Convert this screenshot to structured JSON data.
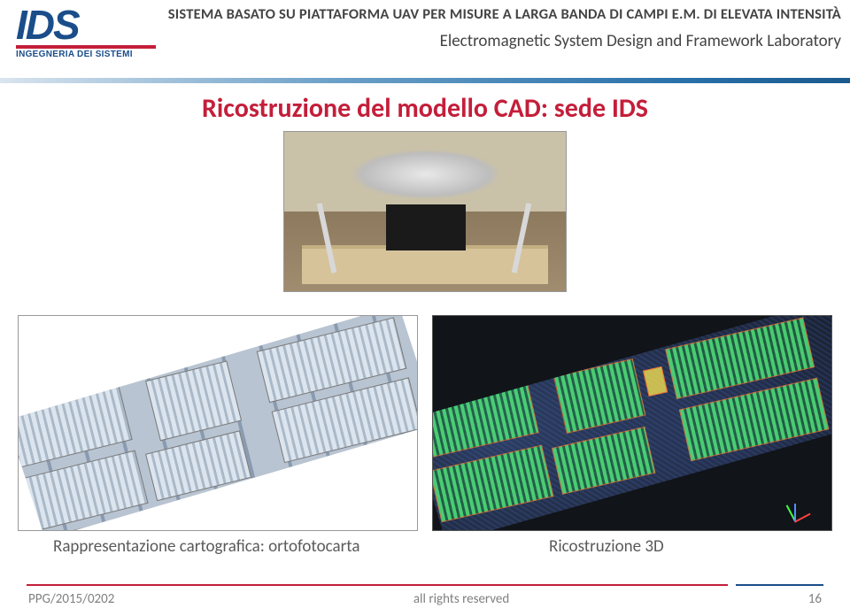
{
  "logo": {
    "text": "IDS",
    "subtitle": "INGEGNERIA DEI SISTEMI"
  },
  "header": {
    "title": "SISTEMA BASATO SU PIATTAFORMA UAV PER MISURE A LARGA BANDA DI CAMPI E.M. DI ELEVATA INTENSITÀ",
    "subtitle": "Electromagnetic System Design and Framework Laboratory"
  },
  "main": {
    "title": "Ricostruzione del modello CAD: sede IDS",
    "caption_left": "Rappresentazione cartografica: ortofotocarta",
    "caption_right": "Ricostruzione 3D"
  },
  "footer": {
    "doc_id": "PPG/2015/0202",
    "rights": "all rights reserved",
    "page": "16"
  },
  "colors": {
    "brand_blue": "#1a4d8a",
    "brand_red": "#c41e3a",
    "title_red": "#c41e3a",
    "text_gray": "#444444",
    "footer_gray": "#808080"
  }
}
